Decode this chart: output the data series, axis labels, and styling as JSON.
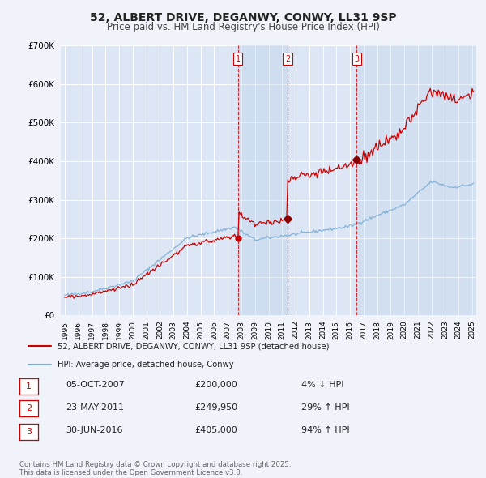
{
  "title": "52, ALBERT DRIVE, DEGANWY, CONWY, LL31 9SP",
  "subtitle": "Price paid vs. HM Land Registry's House Price Index (HPI)",
  "background_color": "#f0f4fa",
  "plot_bg_color": "#dce6f5",
  "grid_color": "#ffffff",
  "shaded_bg_color": "#ccddf0",
  "legend_label_red": "52, ALBERT DRIVE, DEGANWY, CONWY, LL31 9SP (detached house)",
  "legend_label_blue": "HPI: Average price, detached house, Conwy",
  "footer_text": "Contains HM Land Registry data © Crown copyright and database right 2025.\nThis data is licensed under the Open Government Licence v3.0.",
  "transaction_labels": [
    "1",
    "2",
    "3"
  ],
  "transaction_years_float": [
    2007.75,
    2011.4,
    2016.5
  ],
  "transaction_prices": [
    200000,
    249950,
    405000
  ],
  "transaction_info": [
    "05-OCT-2007",
    "23-MAY-2011",
    "30-JUN-2016"
  ],
  "transaction_amounts": [
    "£200,000",
    "£249,950",
    "£405,000"
  ],
  "transaction_hpi": [
    "4% ↓ HPI",
    "29% ↑ HPI",
    "94% ↑ HPI"
  ],
  "ylim": [
    0,
    700000
  ],
  "yticks": [
    0,
    100000,
    200000,
    300000,
    400000,
    500000,
    600000,
    700000
  ],
  "xlim_min": 1994.7,
  "xlim_max": 2025.3,
  "red_color": "#cc0000",
  "blue_color": "#7aadd4",
  "dashed_color": "#cc0000",
  "title_fontsize": 10,
  "subtitle_fontsize": 8.5
}
